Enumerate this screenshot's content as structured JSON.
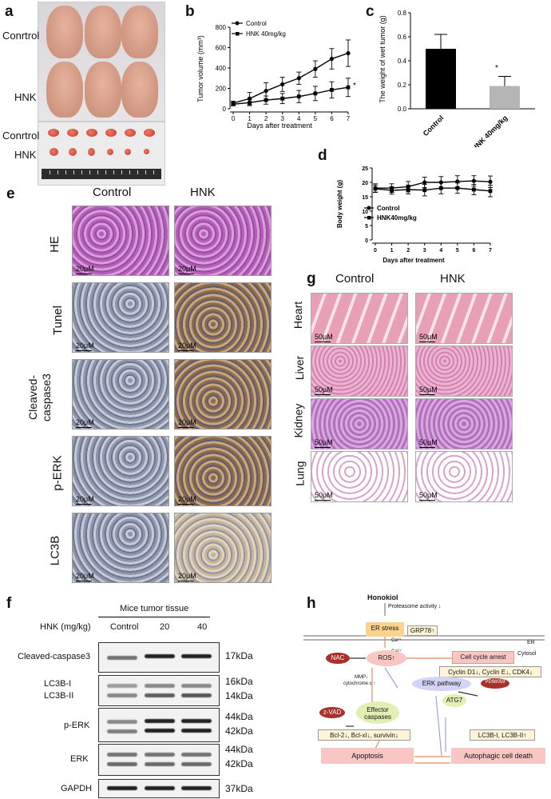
{
  "panels": {
    "a": "a",
    "b": "b",
    "c": "c",
    "d": "d",
    "e": "e",
    "f": "f",
    "g": "g",
    "h": "h"
  },
  "panel_a": {
    "row1": "Conrtrol",
    "row2": "HNK",
    "row3": "Conrtrol",
    "row4": "HNK"
  },
  "panel_e": {
    "col1": "Control",
    "col2": "HNK",
    "rows": [
      "HE",
      "Tunel",
      "Cleaved-caspase3",
      "p-ERK",
      "LC3B"
    ],
    "row3_line1": "Cleaved-",
    "row3_line2": "caspase3",
    "scale": "20μM"
  },
  "panel_g": {
    "col1": "Control",
    "col2": "HNK",
    "rows": [
      "Heart",
      "Liver",
      "Kidney",
      "Lung"
    ],
    "scale": "50μM"
  },
  "panel_f": {
    "title": "Mice tumor tissue",
    "dose_label": "HNK (mg/kg)",
    "doses": [
      "Control",
      "20",
      "40"
    ],
    "rows": [
      "Cleaved-caspase3",
      "LC3B-I",
      "LC3B-II",
      "p-ERK",
      "ERK",
      "GAPDH"
    ],
    "kda": [
      "17kDa",
      "16kDa",
      "14kDa",
      "44kDa",
      "42kDa",
      "44kDa",
      "42kDa",
      "37kDa"
    ]
  },
  "panel_h": {
    "honokiol": "Honokiol",
    "proteasome": "Proteasome activity ↓",
    "er_stress": "ER stress",
    "grp78": "GRP78↑",
    "ca1": "Ca²⁺",
    "ca2": "Ca²⁺",
    "er": "ER",
    "cytosol": "Cytosol",
    "nac": "NAC",
    "ros": "ROS↑",
    "cell_cycle": "Cell cycle arrest",
    "cyclins": "Cyclin D1↓, Cyclin E↓, CDK4↓",
    "mmp": "MMP↓",
    "cytc": "cytochrome c ↑",
    "erk": "ERK pathway",
    "pd": "PD98059",
    "zvad": "z-VAD",
    "effector": "Effector caspases",
    "atg7": "ATG7",
    "bcl": "Bcl-2↓, Bcl-xl↓, survivin↓",
    "lc3": "LC3B-I, LC3B-II↑",
    "apoptosis": "Apoptosis",
    "autophagic": "Autophagic cell death"
  },
  "chart_data": [
    {
      "type": "line",
      "panel": "b",
      "x": [
        0,
        1,
        2,
        3,
        4,
        5,
        6,
        7
      ],
      "xlabel": "Days after treatment",
      "ylabel": "Tumor volume (mm³)",
      "ylim": [
        0,
        800
      ],
      "yticks": [
        0,
        200,
        400,
        600,
        800
      ],
      "series": [
        {
          "name": "Control",
          "values": [
            55,
            100,
            175,
            240,
            300,
            390,
            490,
            545
          ],
          "err": [
            20,
            60,
            80,
            70,
            60,
            80,
            100,
            130
          ]
        },
        {
          "name": "HNK 40mg/kg",
          "values": [
            45,
            60,
            85,
            100,
            120,
            150,
            185,
            210
          ],
          "err": [
            15,
            30,
            40,
            50,
            60,
            70,
            80,
            90
          ]
        }
      ],
      "annotation": "*"
    },
    {
      "type": "bar",
      "panel": "c",
      "categories": [
        "Control",
        "HNK 40mg/kg"
      ],
      "values": [
        0.5,
        0.19
      ],
      "err": [
        0.12,
        0.08
      ],
      "ylabel": "The weight of wet tumor (g)",
      "ylim": [
        0,
        0.8
      ],
      "yticks": [
        0,
        0.2,
        0.4,
        0.6,
        0.8
      ],
      "colors": [
        "#000000",
        "#b5b5b5"
      ],
      "annotation": "*"
    },
    {
      "type": "line",
      "panel": "d",
      "x": [
        0,
        1,
        2,
        3,
        4,
        5,
        6,
        7
      ],
      "xlabel": "Days after treatment",
      "ylabel": "Body weight (g)",
      "ylim": [
        0,
        25
      ],
      "yticks": [
        0,
        5,
        10,
        15,
        20,
        25
      ],
      "series": [
        {
          "name": "Control",
          "values": [
            18,
            18,
            18.5,
            20,
            20,
            20.3,
            20.5,
            20.2
          ],
          "err": [
            1.5,
            1.5,
            1.8,
            1.8,
            2,
            2,
            1.8,
            2
          ]
        },
        {
          "name": "HNK40mg/kg",
          "values": [
            17.8,
            17.2,
            17.5,
            17.3,
            18,
            18,
            17.5,
            17
          ],
          "err": [
            1.2,
            1.3,
            1.5,
            2,
            2,
            1.8,
            1.8,
            2
          ]
        }
      ]
    }
  ]
}
